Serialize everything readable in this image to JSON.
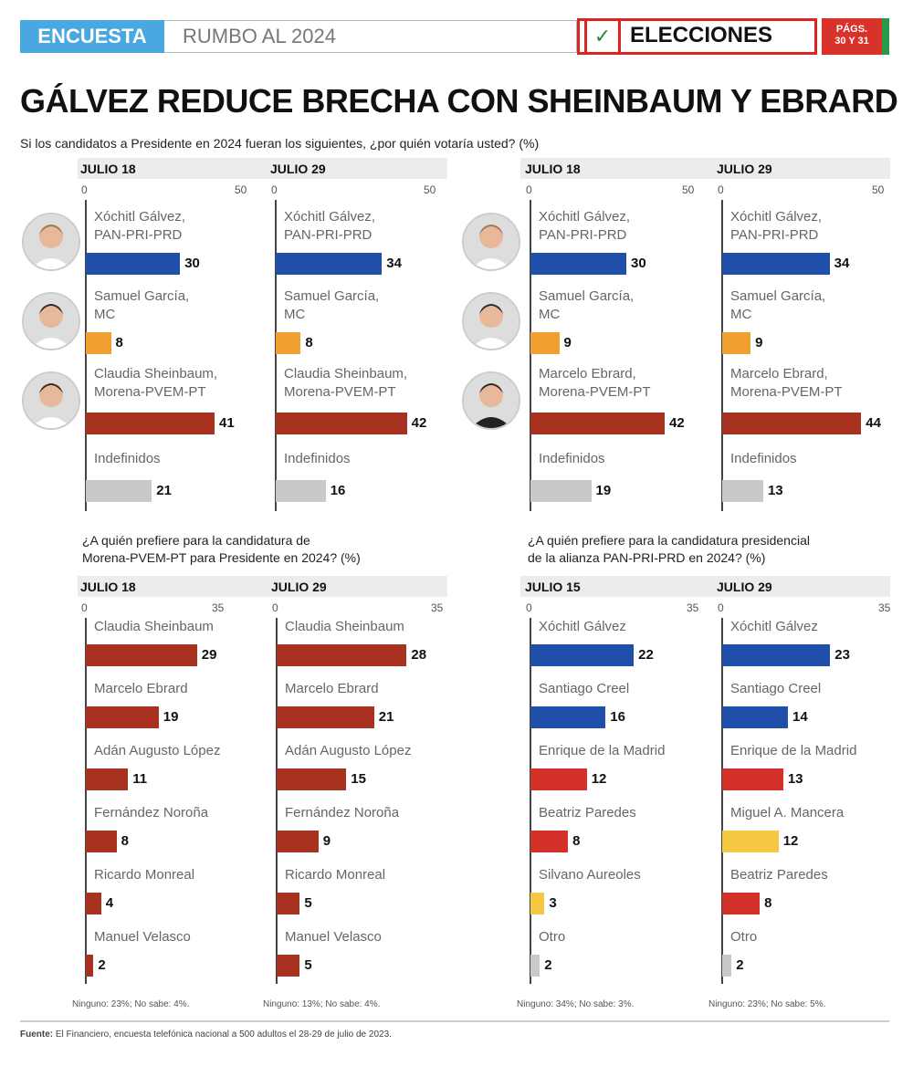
{
  "header": {
    "section": "ENCUESTA",
    "topic": "RUMBO AL 2024",
    "badge": "ELECCIONES",
    "pages_line1": "PÁGS.",
    "pages_line2": "30 Y 31",
    "check_icon": "check-icon"
  },
  "title": "GÁLVEZ REDUCE BRECHA CON SHEINBAUM Y EBRARD",
  "question_top": "Si los candidatos a Presidente en 2024 fueran los siguientes, ¿por quién votaría usted?  (%)",
  "question_bl": [
    "¿A quién prefiere para la candidatura de",
    "Morena-PVEM-PT para Presidente en 2024?  (%)"
  ],
  "question_br": [
    "¿A quién prefiere para la candidatura presidencial",
    "de la alianza PAN-PRI-PRD en 2024?  (%)"
  ],
  "colors": {
    "blue": "#1f4fa8",
    "orange": "#f0a030",
    "darkred": "#a8321f",
    "gray": "#c9c9c9",
    "red": "#d3302a",
    "yellow": "#f5c842"
  },
  "chart_data": [
    {
      "type": "bar",
      "orientation": "horizontal",
      "title": "JULIO 18",
      "xlim": [
        0,
        50
      ],
      "ticks": [
        "0",
        "50"
      ],
      "categories": [
        [
          "Xóchitl Gálvez,",
          "PAN-PRI-PRD"
        ],
        [
          "Samuel García,",
          "MC"
        ],
        [
          "Claudia Sheinbaum,",
          "Morena-PVEM-PT"
        ],
        [
          "Indefinidos"
        ]
      ],
      "values": [
        30,
        8,
        41,
        21
      ],
      "colors": [
        "blue",
        "orange",
        "darkred",
        "gray"
      ]
    },
    {
      "type": "bar",
      "orientation": "horizontal",
      "title": "JULIO 29",
      "xlim": [
        0,
        50
      ],
      "ticks": [
        "0",
        "50"
      ],
      "categories": [
        [
          "Xóchitl Gálvez,",
          "PAN-PRI-PRD"
        ],
        [
          "Samuel García,",
          "MC"
        ],
        [
          "Claudia Sheinbaum,",
          "Morena-PVEM-PT"
        ],
        [
          "Indefinidos"
        ]
      ],
      "values": [
        34,
        8,
        42,
        16
      ],
      "colors": [
        "blue",
        "orange",
        "darkred",
        "gray"
      ]
    },
    {
      "type": "bar",
      "orientation": "horizontal",
      "title": "JULIO 18",
      "xlim": [
        0,
        50
      ],
      "ticks": [
        "0",
        "50"
      ],
      "categories": [
        [
          "Xóchitl Gálvez,",
          "PAN-PRI-PRD"
        ],
        [
          "Samuel García,",
          "MC"
        ],
        [
          "Marcelo Ebrard,",
          "Morena-PVEM-PT"
        ],
        [
          "Indefinidos"
        ]
      ],
      "values": [
        30,
        9,
        42,
        19
      ],
      "colors": [
        "blue",
        "orange",
        "darkred",
        "gray"
      ]
    },
    {
      "type": "bar",
      "orientation": "horizontal",
      "title": "JULIO 29",
      "xlim": [
        0,
        50
      ],
      "ticks": [
        "0",
        "50"
      ],
      "categories": [
        [
          "Xóchitl Gálvez,",
          "PAN-PRI-PRD"
        ],
        [
          "Samuel García,",
          "MC"
        ],
        [
          "Marcelo Ebrard,",
          "Morena-PVEM-PT"
        ],
        [
          "Indefinidos"
        ]
      ],
      "values": [
        34,
        9,
        44,
        13
      ],
      "colors": [
        "blue",
        "orange",
        "darkred",
        "gray"
      ]
    },
    {
      "type": "bar",
      "orientation": "horizontal",
      "title": "JULIO 18",
      "xlim": [
        0,
        35
      ],
      "ticks": [
        "0",
        "35"
      ],
      "categories": [
        [
          "Claudia Sheinbaum"
        ],
        [
          "Marcelo Ebrard"
        ],
        [
          "Adán Augusto López"
        ],
        [
          "Fernández Noroña"
        ],
        [
          "Ricardo Monreal"
        ],
        [
          "Manuel Velasco"
        ]
      ],
      "values": [
        29,
        19,
        11,
        8,
        4,
        2
      ],
      "colors": [
        "darkred",
        "darkred",
        "darkred",
        "darkred",
        "darkred",
        "darkred"
      ],
      "note": "Ninguno: 23%; No sabe: 4%."
    },
    {
      "type": "bar",
      "orientation": "horizontal",
      "title": "JULIO 29",
      "xlim": [
        0,
        35
      ],
      "ticks": [
        "0",
        "35"
      ],
      "categories": [
        [
          "Claudia Sheinbaum"
        ],
        [
          "Marcelo Ebrard"
        ],
        [
          "Adán Augusto López"
        ],
        [
          "Fernández Noroña"
        ],
        [
          "Ricardo Monreal"
        ],
        [
          "Manuel Velasco"
        ]
      ],
      "values": [
        28,
        21,
        15,
        9,
        5,
        5
      ],
      "colors": [
        "darkred",
        "darkred",
        "darkred",
        "darkred",
        "darkred",
        "darkred"
      ],
      "note": "Ninguno: 13%; No sabe: 4%."
    },
    {
      "type": "bar",
      "orientation": "horizontal",
      "title": "JULIO 15",
      "xlim": [
        0,
        35
      ],
      "ticks": [
        "0",
        "35"
      ],
      "categories": [
        [
          "Xóchitl Gálvez"
        ],
        [
          "Santiago Creel"
        ],
        [
          "Enrique de la Madrid"
        ],
        [
          "Beatriz Paredes"
        ],
        [
          "Silvano Aureoles"
        ],
        [
          "Otro"
        ]
      ],
      "values": [
        22,
        16,
        12,
        8,
        3,
        2
      ],
      "colors": [
        "blue",
        "blue",
        "red",
        "red",
        "yellow",
        "gray"
      ],
      "note": "Ninguno: 34%; No sabe: 3%."
    },
    {
      "type": "bar",
      "orientation": "horizontal",
      "title": "JULIO 29",
      "xlim": [
        0,
        35
      ],
      "ticks": [
        "0",
        "35"
      ],
      "categories": [
        [
          "Xóchitl Gálvez"
        ],
        [
          "Santiago Creel"
        ],
        [
          "Enrique de la Madrid"
        ],
        [
          "Miguel A. Mancera"
        ],
        [
          "Beatriz Paredes"
        ],
        [
          "Otro"
        ]
      ],
      "values": [
        23,
        14,
        13,
        12,
        8,
        2
      ],
      "colors": [
        "blue",
        "blue",
        "red",
        "yellow",
        "red",
        "gray"
      ],
      "note": "Ninguno: 23%; No sabe: 5%."
    }
  ],
  "photos": [
    "Xóchitl Gálvez",
    "Samuel García",
    "Claudia Sheinbaum",
    "Xóchitl Gálvez",
    "Samuel García",
    "Marcelo Ebrard"
  ],
  "source_label": "Fuente:",
  "source_text": " El Financiero, encuesta telefónica nacional a 500 adultos el 28-29 de julio de 2023."
}
